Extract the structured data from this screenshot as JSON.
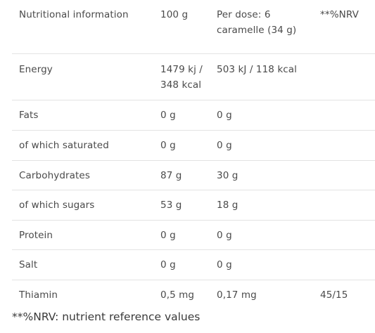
{
  "table": {
    "header": {
      "label": "Nutritional information",
      "per100": "100 g",
      "perDose": "Per dose: 6 caramelle (34 g)",
      "nrv": "**%NRV"
    },
    "rows": [
      {
        "label": "Energy",
        "per100": "1479 kj / 348 kcal",
        "perDose": "503 kJ / 118 kcal",
        "nrv": ""
      },
      {
        "label": "Fats",
        "per100": "0 g",
        "perDose": "0 g",
        "nrv": ""
      },
      {
        "label": "of which saturated",
        "per100": "0 g",
        "perDose": "0 g",
        "nrv": ""
      },
      {
        "label": "Carbohydrates",
        "per100": "87 g",
        "perDose": "30 g",
        "nrv": ""
      },
      {
        "label": "of which sugars",
        "per100": "53 g",
        "perDose": "18 g",
        "nrv": ""
      },
      {
        "label": "Protein",
        "per100": "0 g",
        "perDose": "0 g",
        "nrv": ""
      },
      {
        "label": "Salt",
        "per100": "0 g",
        "perDose": "0 g",
        "nrv": ""
      },
      {
        "label": "Thiamin",
        "per100": "0,5 mg",
        "perDose": "0,17 mg",
        "nrv": "45/15"
      }
    ]
  },
  "footnote": "**%NRV: nutrient reference values"
}
